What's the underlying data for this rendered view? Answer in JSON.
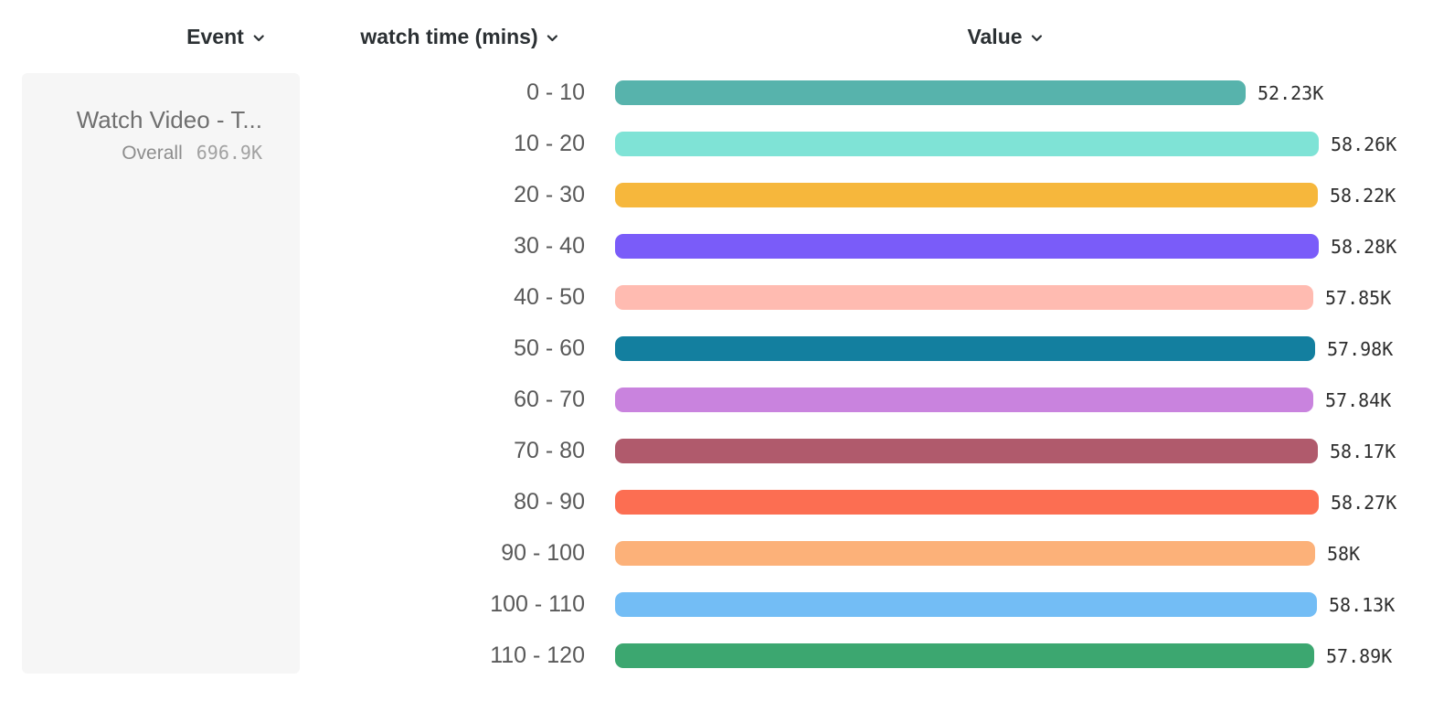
{
  "header": {
    "event_column": "Event",
    "breakdown_column": "watch time (mins)",
    "value_column": "Value"
  },
  "event_card": {
    "title": "Watch Video - T...",
    "overall_label": "Overall",
    "overall_value": "696.9K"
  },
  "chart_data": {
    "type": "bar",
    "orientation": "horizontal",
    "title": "",
    "xlabel": "Value",
    "ylabel": "watch time (mins)",
    "categories": [
      "0 - 10",
      "10 - 20",
      "20 - 30",
      "30 - 40",
      "40 - 50",
      "50 - 60",
      "60 - 70",
      "70 - 80",
      "80 - 90",
      "90 - 100",
      "100 - 110",
      "110 - 120"
    ],
    "values": [
      52230,
      58260,
      58220,
      58280,
      57850,
      57980,
      57840,
      58170,
      58270,
      58000,
      58130,
      57890
    ],
    "value_labels": [
      "52.23K",
      "58.26K",
      "58.22K",
      "58.28K",
      "57.85K",
      "57.98K",
      "57.84K",
      "58.17K",
      "58.27K",
      "58K",
      "58.13K",
      "57.89K"
    ],
    "colors": [
      "#57b3ac",
      "#7fe3d6",
      "#f6b73c",
      "#7a5cf9",
      "#ffbbb1",
      "#137f9f",
      "#c983de",
      "#b05a6c",
      "#fc6e52",
      "#fcb179",
      "#73bdf5",
      "#3ca770"
    ],
    "xlim": [
      0,
      58280
    ],
    "grid": false,
    "legend": "none"
  }
}
